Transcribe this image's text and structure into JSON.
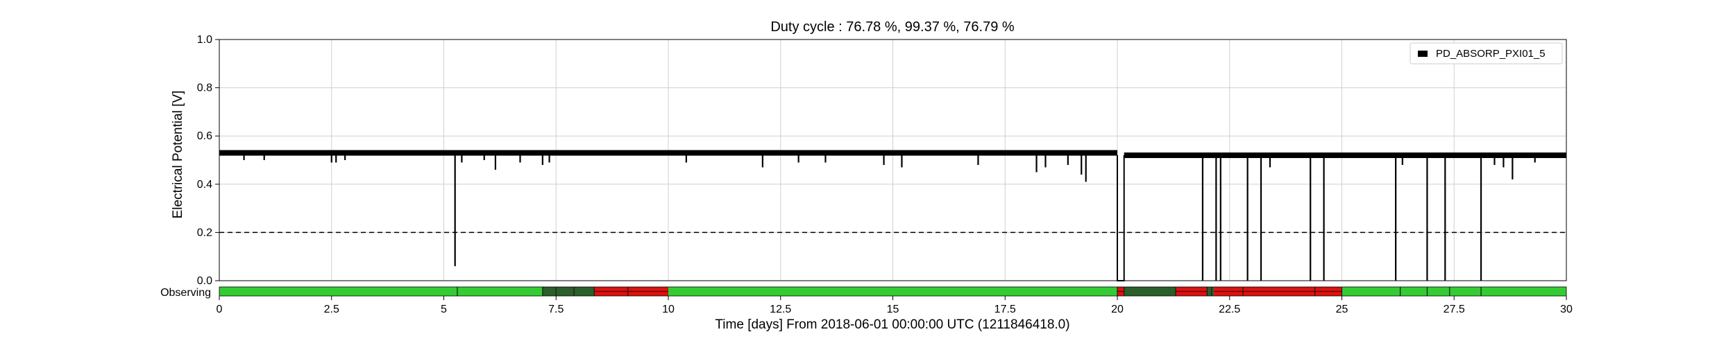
{
  "chart_data": {
    "type": "line",
    "title": "Duty cycle : 76.78 %, 99.37 %, 76.79 %",
    "xlabel": "Time [days] From 2018-06-01 00:00:00 UTC (1211846418.0)",
    "ylabel": "Electrical Potential [V]",
    "xlim": [
      0,
      30
    ],
    "ylim": [
      0,
      1.0
    ],
    "grid": true,
    "legend_placement": "top-right",
    "x_ticks": [
      "0",
      "2.5",
      "5",
      "7.5",
      "10",
      "12.5",
      "15",
      "17.5",
      "20",
      "22.5",
      "25",
      "27.5",
      "30"
    ],
    "y_ticks": [
      "0.0",
      "0.2",
      "0.4",
      "0.6",
      "0.8",
      "1.0"
    ],
    "threshold": 0.2,
    "series": [
      {
        "name": "PD_ABSORP_PXI01_5",
        "color": "#000000",
        "baseline": 0.52,
        "baseline_segments": [
          {
            "x0": 0,
            "x1": 20.0,
            "y0": 0.53,
            "y1": 0.52
          },
          {
            "x0": 20.15,
            "x1": 30,
            "y0": 0.52,
            "y1": 0.52
          }
        ],
        "dips": [
          {
            "x": 0.55,
            "y": 0.5
          },
          {
            "x": 1.0,
            "y": 0.5
          },
          {
            "x": 2.5,
            "y": 0.49
          },
          {
            "x": 2.6,
            "y": 0.49
          },
          {
            "x": 2.8,
            "y": 0.5
          },
          {
            "x": 5.25,
            "y": 0.06
          },
          {
            "x": 5.4,
            "y": 0.49
          },
          {
            "x": 5.9,
            "y": 0.5
          },
          {
            "x": 6.15,
            "y": 0.46
          },
          {
            "x": 6.7,
            "y": 0.49
          },
          {
            "x": 7.2,
            "y": 0.48
          },
          {
            "x": 7.35,
            "y": 0.49
          },
          {
            "x": 10.4,
            "y": 0.49
          },
          {
            "x": 12.1,
            "y": 0.47
          },
          {
            "x": 12.9,
            "y": 0.49
          },
          {
            "x": 13.5,
            "y": 0.49
          },
          {
            "x": 14.8,
            "y": 0.48
          },
          {
            "x": 15.2,
            "y": 0.47
          },
          {
            "x": 16.9,
            "y": 0.48
          },
          {
            "x": 18.2,
            "y": 0.45
          },
          {
            "x": 18.4,
            "y": 0.47
          },
          {
            "x": 18.9,
            "y": 0.48
          },
          {
            "x": 19.2,
            "y": 0.44
          },
          {
            "x": 19.3,
            "y": 0.41
          },
          {
            "x": 21.9,
            "y": 0.0
          },
          {
            "x": 22.2,
            "y": 0.0
          },
          {
            "x": 22.3,
            "y": 0.0
          },
          {
            "x": 22.9,
            "y": 0.0
          },
          {
            "x": 23.2,
            "y": 0.0
          },
          {
            "x": 23.4,
            "y": 0.47
          },
          {
            "x": 24.3,
            "y": 0.0
          },
          {
            "x": 24.6,
            "y": 0.0
          },
          {
            "x": 26.2,
            "y": 0.0
          },
          {
            "x": 26.35,
            "y": 0.48
          },
          {
            "x": 26.9,
            "y": 0.0
          },
          {
            "x": 27.3,
            "y": 0.0
          },
          {
            "x": 28.1,
            "y": 0.0
          },
          {
            "x": 28.4,
            "y": 0.48
          },
          {
            "x": 28.6,
            "y": 0.47
          },
          {
            "x": 28.8,
            "y": 0.42
          },
          {
            "x": 29.3,
            "y": 0.49
          }
        ],
        "outage": {
          "x0": 20.0,
          "x1": 20.15,
          "y": 0.0
        }
      }
    ],
    "state_bar": {
      "label": "Observing",
      "segments": [
        {
          "x0": 0,
          "x1": 7.2,
          "state": "observing"
        },
        {
          "x0": 7.2,
          "x1": 8.35,
          "state": "dark"
        },
        {
          "x0": 8.35,
          "x1": 10.0,
          "state": "red"
        },
        {
          "x0": 10.0,
          "x1": 20.0,
          "state": "observing"
        },
        {
          "x0": 20.0,
          "x1": 20.15,
          "state": "red"
        },
        {
          "x0": 20.15,
          "x1": 21.3,
          "state": "dark"
        },
        {
          "x0": 21.3,
          "x1": 22.0,
          "state": "red"
        },
        {
          "x0": 22.0,
          "x1": 22.15,
          "state": "dark"
        },
        {
          "x0": 22.15,
          "x1": 25.0,
          "state": "red"
        },
        {
          "x0": 25.0,
          "x1": 30,
          "state": "observing"
        }
      ],
      "ticks": [
        5.3,
        7.2,
        7.5,
        7.9,
        8.35,
        9.1,
        20.0,
        20.15,
        21.3,
        22.0,
        22.1,
        22.8,
        24.4,
        25.0,
        26.3,
        26.9,
        27.4,
        28.1
      ],
      "colors": {
        "observing": "#33cc33",
        "dark": "#2a5e2a",
        "red": "#dd1111"
      }
    }
  }
}
